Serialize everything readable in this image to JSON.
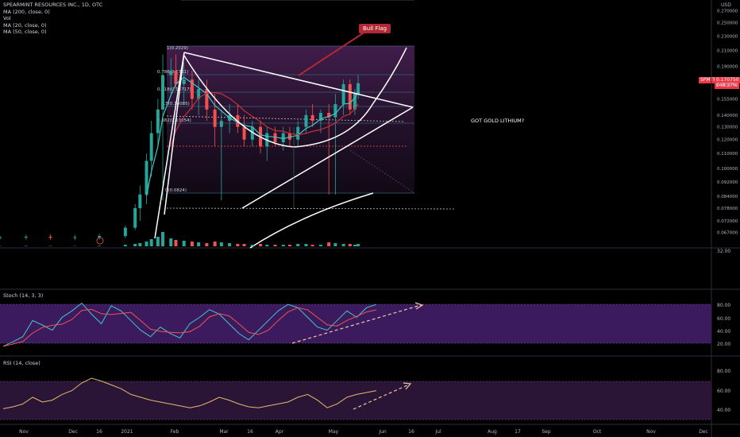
{
  "header": {
    "title": "SPEARMINT RESOURCES INC., 1D, OTC",
    "indicators": [
      "Vol",
      "MA (200, close, 0)",
      "MA (20, close, 0)",
      "MA (50, close, 0)"
    ]
  },
  "price_axis": {
    "unit": "USD",
    "ticks": [
      "0.270000",
      "0.250000",
      "0.230000",
      "0.210000",
      "0.190000",
      "0.170000",
      "0.155000",
      "0.140000",
      "0.130000",
      "0.120000",
      "0.110000",
      "0.100000",
      "0.092000",
      "0.084000",
      "0.078000",
      "0.072000",
      "0.067000"
    ]
  },
  "last_price": {
    "symbol": "SPMTF",
    "value": "0.170750",
    "sub": "E48.37%"
  },
  "fib_labels": [
    "0.786(0.1761)",
    "0.618(0.15717)",
    "0.5(0.14085)",
    "0.382(0.13054)",
    "0(0.0824)",
    "1(0.2029)"
  ],
  "annotations": {
    "bull_flag": "Bull Flag",
    "note": "GOT GOLD LITHIUM?"
  },
  "volume_axis": {
    "ticks": [
      "32.00"
    ]
  },
  "stoch": {
    "title": "Stoch (14, 3, 3)",
    "ticks": [
      "80.00",
      "60.00",
      "40.00",
      "20.00"
    ]
  },
  "rsi": {
    "title": "RSI (14, close)",
    "ticks": [
      "80.00",
      "60.00",
      "40.00"
    ]
  },
  "time_axis": {
    "ticks": [
      "Nov",
      "Dec",
      "16",
      "2021",
      "Feb",
      "Mar",
      "16",
      "Apr",
      "May",
      "Jun",
      "16",
      "Jul",
      "Aug",
      "17",
      "Sep",
      "Oct",
      "Nov",
      "Dec"
    ]
  },
  "colors": {
    "up": "#26a69a",
    "down": "#ef5350",
    "ma20": "#42c6c6",
    "ma50": "#c2313a",
    "stoch_fill": "#3b1b5e",
    "rsi_line": "#e6b96b",
    "background": "#000000"
  },
  "chart_data": {
    "type": "candlestick",
    "title": "SPEARMINT RESOURCES INC., 1D, OTC",
    "y_axis_scale": "log",
    "ylim": [
      0.062,
      0.28
    ],
    "x_range": [
      "2020-10-20",
      "2021-12-31"
    ],
    "series": [
      {
        "name": "price",
        "points": [
          {
            "d": "2020-10-20",
            "o": 0.065,
            "h": 0.0655,
            "l": 0.064,
            "c": 0.065
          },
          {
            "d": "2020-11-05",
            "o": 0.065,
            "h": 0.066,
            "l": 0.064,
            "c": 0.0652
          },
          {
            "d": "2020-11-20",
            "o": 0.0652,
            "h": 0.0662,
            "l": 0.064,
            "c": 0.0648
          },
          {
            "d": "2020-12-05",
            "o": 0.0648,
            "h": 0.066,
            "l": 0.0638,
            "c": 0.065
          },
          {
            "d": "2020-12-20",
            "o": 0.065,
            "h": 0.0665,
            "l": 0.064,
            "c": 0.0655
          },
          {
            "d": "2021-01-05",
            "o": 0.0655,
            "h": 0.07,
            "l": 0.0645,
            "c": 0.069
          },
          {
            "d": "2021-01-11",
            "o": 0.069,
            "h": 0.08,
            "l": 0.068,
            "c": 0.078
          },
          {
            "d": "2021-01-14",
            "o": 0.078,
            "h": 0.09,
            "l": 0.072,
            "c": 0.085
          },
          {
            "d": "2021-01-18",
            "o": 0.085,
            "h": 0.11,
            "l": 0.08,
            "c": 0.105
          },
          {
            "d": "2021-01-21",
            "o": 0.105,
            "h": 0.135,
            "l": 0.095,
            "c": 0.125
          },
          {
            "d": "2021-01-25",
            "o": 0.125,
            "h": 0.155,
            "l": 0.115,
            "c": 0.145
          },
          {
            "d": "2021-01-28",
            "o": 0.145,
            "h": 0.205,
            "l": 0.082,
            "c": 0.18
          },
          {
            "d": "2021-02-02",
            "o": 0.18,
            "h": 0.2,
            "l": 0.16,
            "c": 0.185
          },
          {
            "d": "2021-02-05",
            "o": 0.185,
            "h": 0.205,
            "l": 0.165,
            "c": 0.17
          },
          {
            "d": "2021-02-10",
            "o": 0.17,
            "h": 0.195,
            "l": 0.15,
            "c": 0.175
          },
          {
            "d": "2021-02-15",
            "o": 0.175,
            "h": 0.185,
            "l": 0.145,
            "c": 0.155
          },
          {
            "d": "2021-02-19",
            "o": 0.155,
            "h": 0.175,
            "l": 0.14,
            "c": 0.165
          },
          {
            "d": "2021-02-24",
            "o": 0.165,
            "h": 0.175,
            "l": 0.135,
            "c": 0.145
          },
          {
            "d": "2021-03-01",
            "o": 0.145,
            "h": 0.16,
            "l": 0.115,
            "c": 0.13
          },
          {
            "d": "2021-03-05",
            "o": 0.13,
            "h": 0.145,
            "l": 0.082,
            "c": 0.135
          },
          {
            "d": "2021-03-10",
            "o": 0.135,
            "h": 0.15,
            "l": 0.125,
            "c": 0.14
          },
          {
            "d": "2021-03-15",
            "o": 0.14,
            "h": 0.15,
            "l": 0.125,
            "c": 0.13
          },
          {
            "d": "2021-03-19",
            "o": 0.13,
            "h": 0.14,
            "l": 0.115,
            "c": 0.12
          },
          {
            "d": "2021-03-24",
            "o": 0.12,
            "h": 0.135,
            "l": 0.115,
            "c": 0.13
          },
          {
            "d": "2021-03-29",
            "o": 0.13,
            "h": 0.135,
            "l": 0.11,
            "c": 0.115
          },
          {
            "d": "2021-04-02",
            "o": 0.115,
            "h": 0.13,
            "l": 0.105,
            "c": 0.125
          },
          {
            "d": "2021-04-07",
            "o": 0.125,
            "h": 0.13,
            "l": 0.115,
            "c": 0.118
          },
          {
            "d": "2021-04-12",
            "o": 0.118,
            "h": 0.13,
            "l": 0.112,
            "c": 0.125
          },
          {
            "d": "2021-04-16",
            "o": 0.125,
            "h": 0.13,
            "l": 0.115,
            "c": 0.12
          },
          {
            "d": "2021-04-21",
            "o": 0.12,
            "h": 0.135,
            "l": 0.115,
            "c": 0.13
          },
          {
            "d": "2021-04-26",
            "o": 0.13,
            "h": 0.145,
            "l": 0.125,
            "c": 0.14
          },
          {
            "d": "2021-04-30",
            "o": 0.14,
            "h": 0.15,
            "l": 0.13,
            "c": 0.135
          },
          {
            "d": "2021-05-05",
            "o": 0.135,
            "h": 0.145,
            "l": 0.125,
            "c": 0.142
          },
          {
            "d": "2021-05-10",
            "o": 0.142,
            "h": 0.15,
            "l": 0.085,
            "c": 0.138
          },
          {
            "d": "2021-05-14",
            "o": 0.138,
            "h": 0.16,
            "l": 0.085,
            "c": 0.15
          },
          {
            "d": "2021-05-19",
            "o": 0.15,
            "h": 0.175,
            "l": 0.14,
            "c": 0.17
          },
          {
            "d": "2021-05-23",
            "o": 0.17,
            "h": 0.175,
            "l": 0.14,
            "c": 0.145
          },
          {
            "d": "2021-05-26",
            "o": 0.145,
            "h": 0.165,
            "l": 0.14,
            "c": 0.16
          },
          {
            "d": "2021-05-28",
            "o": 0.16,
            "h": 0.18,
            "l": 0.155,
            "c": 0.171
          }
        ]
      }
    ],
    "volume": {
      "ylim": [
        0,
        40
      ],
      "values": [
        0.3,
        0.5,
        0.4,
        0.3,
        0.6,
        2,
        3,
        4,
        6,
        9,
        12,
        18,
        10,
        8,
        7,
        6,
        5,
        4,
        6,
        5,
        4,
        3,
        3,
        2,
        3,
        2,
        2,
        2,
        2,
        3,
        3,
        2,
        2,
        5,
        4,
        3,
        3,
        2,
        3
      ]
    },
    "stoch_values": [
      15,
      22,
      30,
      55,
      48,
      40,
      60,
      70,
      82,
      65,
      50,
      78,
      70,
      55,
      40,
      30,
      45,
      35,
      28,
      50,
      60,
      72,
      65,
      50,
      35,
      25,
      40,
      55,
      70,
      80,
      75,
      60,
      45,
      40,
      55,
      70,
      60,
      75,
      80
    ],
    "rsi_values": [
      43,
      45,
      48,
      55,
      50,
      52,
      58,
      62,
      70,
      75,
      72,
      68,
      64,
      58,
      55,
      52,
      50,
      48,
      46,
      44,
      46,
      50,
      55,
      52,
      48,
      45,
      44,
      46,
      48,
      50,
      55,
      58,
      52,
      44,
      48,
      55,
      58,
      60,
      62
    ],
    "stoch_ylim": [
      0,
      100
    ],
    "rsi_ylim": [
      25,
      90
    ]
  }
}
